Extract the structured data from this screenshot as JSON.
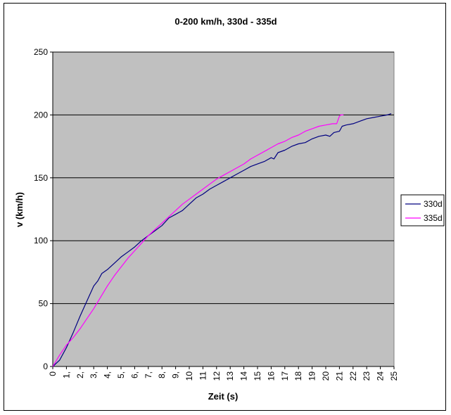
{
  "chart_data": {
    "type": "line",
    "title": "0-200 km/h, 330d - 335d",
    "xlabel": "Zeit (s)",
    "ylabel": "v (km/h)",
    "xlim": [
      0,
      25
    ],
    "ylim": [
      0,
      250
    ],
    "y_ticks": [
      0,
      50,
      100,
      150,
      200,
      250
    ],
    "x_tick_labels": [
      "0",
      "1,",
      "2,",
      "3,",
      "4,",
      "5,",
      "6,",
      "7,",
      "8,",
      "9,",
      "10",
      "11",
      "12",
      "13",
      "14",
      "15",
      "16",
      "17",
      "18",
      "19",
      "20",
      "21",
      "22",
      "23",
      "24",
      "25"
    ],
    "grid": "horizontal major gridlines",
    "plot_background": "#c0c0c0",
    "legend_position": "right",
    "series": [
      {
        "name": "330d",
        "color": "#000080",
        "x": [
          0,
          0.5,
          1,
          1.5,
          2,
          2.5,
          3,
          3.3,
          3.6,
          4,
          4.5,
          5,
          5.5,
          6,
          6.5,
          7,
          7.5,
          8,
          8.5,
          9,
          9.5,
          10,
          10.5,
          11,
          11.5,
          12,
          12.5,
          13,
          13.5,
          14,
          14.5,
          15,
          15.5,
          16,
          16.2,
          16.5,
          17,
          17.5,
          18,
          18.5,
          19,
          19.5,
          20,
          20.3,
          20.6,
          21,
          21.2,
          21.5,
          22,
          22.5,
          23,
          23.5,
          24,
          24.5,
          24.8
        ],
        "y": [
          0,
          5,
          15,
          27,
          40,
          52,
          64,
          68,
          74,
          77,
          82,
          87,
          91,
          95,
          100,
          104,
          108,
          112,
          118,
          121,
          124,
          129,
          134,
          137,
          141,
          144,
          147,
          150,
          153,
          156,
          159,
          161,
          163,
          166,
          165,
          170,
          172,
          175,
          177,
          178,
          181,
          183,
          184,
          183,
          186,
          187,
          191,
          192,
          193,
          195,
          197,
          198,
          199,
          200,
          201
        ]
      },
      {
        "name": "335d",
        "color": "#ff00ff",
        "x": [
          0,
          0.5,
          1,
          1.5,
          2,
          2.5,
          3,
          3.5,
          4,
          4.5,
          5,
          5.5,
          6,
          6.5,
          7,
          7.5,
          8,
          8.5,
          9,
          9.5,
          10,
          10.5,
          11,
          11.5,
          12,
          12.5,
          13,
          13.5,
          14,
          14.5,
          15,
          15.5,
          16,
          16.5,
          17,
          17.5,
          18,
          18.5,
          19,
          19.5,
          20,
          20.5,
          20.8,
          21,
          21.1,
          21.3
        ],
        "y": [
          0,
          9,
          17,
          23,
          30,
          38,
          46,
          55,
          64,
          72,
          79,
          86,
          92,
          98,
          104,
          109,
          114,
          119,
          124,
          129,
          133,
          137,
          141,
          145,
          149,
          152,
          155,
          158,
          161,
          165,
          168,
          171,
          174,
          177,
          179,
          182,
          184,
          187,
          189,
          191,
          192,
          193,
          193,
          199,
          200,
          200
        ]
      }
    ]
  }
}
